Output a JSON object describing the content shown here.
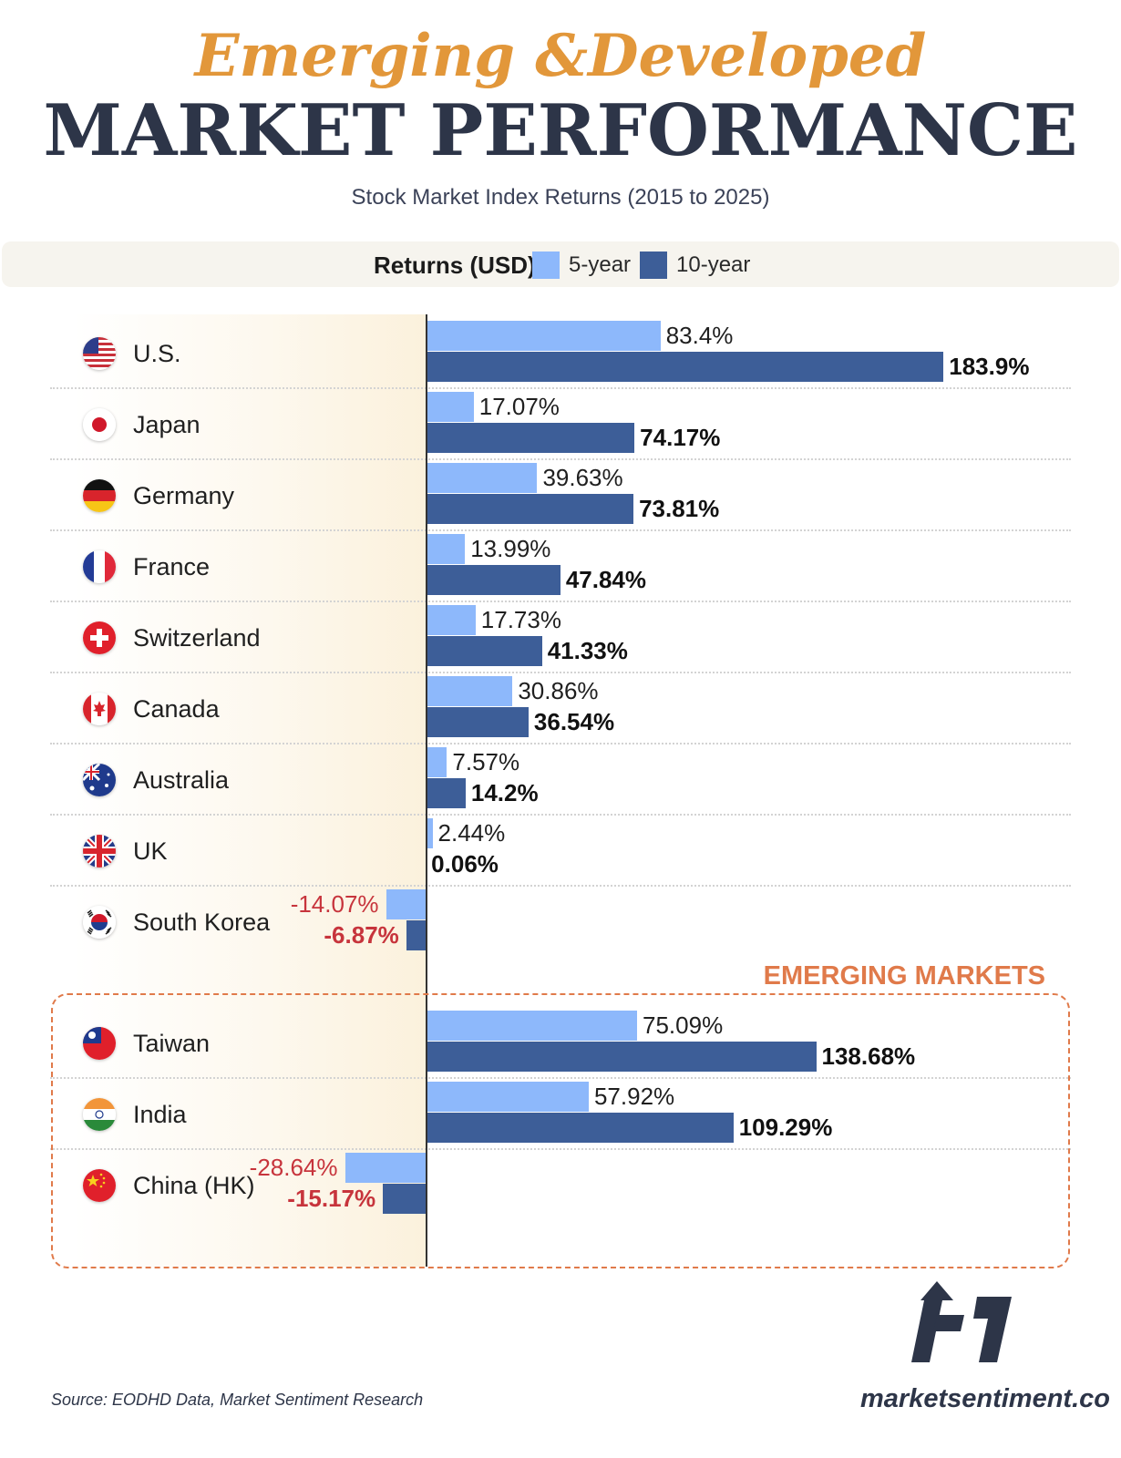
{
  "header": {
    "title_top": "Emerging &Developed",
    "title_main": "MARKET PERFORMANCE",
    "subtitle": "Stock Market Index Returns (2015 to 2025)"
  },
  "legend": {
    "title": "Returns (USD)",
    "items": [
      {
        "label": "5-year",
        "color": "#8db8fb"
      },
      {
        "label": "10-year",
        "color": "#3d5e98"
      }
    ]
  },
  "chart_data": {
    "type": "bar",
    "orientation": "horizontal",
    "categories": [
      "U.S.",
      "Japan",
      "Germany",
      "France",
      "Switzerland",
      "Canada",
      "Australia",
      "UK",
      "South Korea",
      "Taiwan",
      "India",
      "China (HK)"
    ],
    "series": [
      {
        "name": "5-year",
        "values": [
          83.4,
          17.07,
          39.63,
          13.99,
          17.73,
          30.86,
          7.57,
          2.44,
          -14.07,
          75.09,
          57.92,
          -28.64
        ],
        "labels": [
          "83.4%",
          "17.07%",
          "39.63%",
          "13.99%",
          "17.73%",
          "30.86%",
          "7.57%",
          "2.44%",
          "-14.07%",
          "75.09%",
          "57.92%",
          "-28.64%"
        ]
      },
      {
        "name": "10-year",
        "values": [
          183.9,
          74.17,
          73.81,
          47.84,
          41.33,
          36.54,
          14.2,
          0.06,
          -6.87,
          138.68,
          109.29,
          -15.17
        ],
        "labels": [
          "183.9%",
          "74.17%",
          "73.81%",
          "47.84%",
          "41.33%",
          "36.54%",
          "14.2%",
          "0.06%",
          "-6.87%",
          "138.68%",
          "109.29%",
          "-15.17%"
        ]
      }
    ],
    "group_label": "EMERGING MARKETS",
    "emerging_markets": [
      "Taiwan",
      "India",
      "China (HK)"
    ],
    "legend_position": "top",
    "grid": false
  },
  "flags": [
    "us-flag",
    "japan-flag",
    "germany-flag",
    "france-flag",
    "switzerland-flag",
    "canada-flag",
    "australia-flag",
    "uk-flag",
    "south-korea-flag",
    "taiwan-flag",
    "india-flag",
    "china-flag"
  ],
  "footer": {
    "source": "Source: EODHD Data, Market Sentiment Research",
    "brand": "marketsentiment.co"
  }
}
